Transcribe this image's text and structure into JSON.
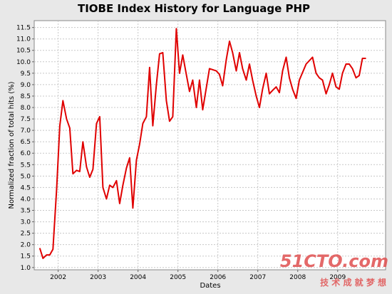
{
  "chart_data": {
    "type": "line",
    "title": "TIOBE Index History for Language PHP",
    "xlabel": "Dates",
    "ylabel": "Normalized fraction of total hits (%)",
    "xlim": [
      2001.4,
      2010.2
    ],
    "ylim": [
      0.9,
      11.8
    ],
    "x_ticks": [
      2002,
      2003,
      2004,
      2005,
      2006,
      2007,
      2008,
      2009
    ],
    "x_tick_labels": [
      "2002",
      "2003",
      "2004",
      "2005",
      "2006",
      "2007",
      "2008",
      "2009"
    ],
    "y_ticks": [
      1.0,
      1.5,
      2.0,
      2.5,
      3.0,
      3.5,
      4.0,
      4.5,
      5.0,
      5.5,
      6.0,
      6.5,
      7.0,
      7.5,
      8.0,
      8.5,
      9.0,
      9.5,
      10.0,
      10.5,
      11.0,
      11.5
    ],
    "y_tick_labels": [
      "1.0",
      "1.5",
      "2.0",
      "2.5",
      "3.0",
      "3.5",
      "4.0",
      "4.5",
      "5.0",
      "5.5",
      "6.0",
      "6.5",
      "7.0",
      "7.5",
      "8.0",
      "8.5",
      "9.0",
      "9.5",
      "10.0",
      "10.5",
      "11.0",
      "11.5"
    ],
    "grid": true,
    "series": [
      {
        "color": "#e00000",
        "x": [
          2001.54,
          2001.62,
          2001.71,
          2001.79,
          2001.87,
          2001.96,
          2002.04,
          2002.12,
          2002.21,
          2002.29,
          2002.37,
          2002.46,
          2002.54,
          2002.62,
          2002.71,
          2002.79,
          2002.87,
          2002.96,
          2003.04,
          2003.12,
          2003.21,
          2003.29,
          2003.37,
          2003.46,
          2003.54,
          2003.62,
          2003.71,
          2003.79,
          2003.87,
          2003.96,
          2004.04,
          2004.12,
          2004.21,
          2004.29,
          2004.37,
          2004.46,
          2004.54,
          2004.62,
          2004.71,
          2004.79,
          2004.87,
          2004.96,
          2005.04,
          2005.12,
          2005.21,
          2005.29,
          2005.37,
          2005.46,
          2005.54,
          2005.62,
          2005.79,
          2005.96,
          2006.04,
          2006.12,
          2006.21,
          2006.29,
          2006.37,
          2006.46,
          2006.54,
          2006.62,
          2006.71,
          2006.79,
          2006.87,
          2006.96,
          2007.04,
          2007.12,
          2007.21,
          2007.29,
          2007.37,
          2007.46,
          2007.54,
          2007.62,
          2007.71,
          2007.79,
          2007.87,
          2007.96,
          2008.04,
          2008.21,
          2008.37,
          2008.46,
          2008.54,
          2008.62,
          2008.71,
          2008.79,
          2008.87,
          2008.96,
          2009.04,
          2009.12,
          2009.21,
          2009.29,
          2009.37,
          2009.46,
          2009.54,
          2009.62,
          2009.71
        ],
        "y": [
          1.85,
          1.4,
          1.55,
          1.55,
          1.8,
          4.4,
          7.2,
          8.3,
          7.5,
          7.1,
          5.1,
          5.25,
          5.2,
          6.5,
          5.4,
          4.95,
          5.3,
          7.3,
          7.6,
          4.5,
          4.0,
          4.6,
          4.5,
          4.8,
          3.8,
          4.6,
          5.35,
          5.8,
          3.6,
          5.7,
          6.4,
          7.3,
          7.6,
          9.75,
          7.2,
          9.0,
          10.35,
          10.4,
          8.3,
          7.4,
          7.6,
          11.45,
          9.5,
          10.3,
          9.45,
          8.7,
          9.2,
          8.0,
          9.2,
          7.9,
          9.7,
          9.6,
          9.45,
          8.95,
          10.1,
          10.9,
          10.4,
          9.6,
          10.4,
          9.7,
          9.2,
          9.9,
          9.2,
          8.5,
          8.0,
          8.8,
          9.5,
          8.6,
          8.75,
          8.9,
          8.65,
          9.6,
          10.2,
          9.3,
          8.8,
          8.4,
          9.2,
          9.9,
          10.2,
          9.5,
          9.3,
          9.2,
          8.6,
          9.0,
          9.5,
          8.9,
          8.8,
          9.5,
          9.9,
          9.9,
          9.7,
          9.3,
          9.4,
          10.15,
          10.15
        ]
      }
    ]
  },
  "watermark": {
    "main": "51CTO.com",
    "sub": "技 术 成 就 梦 想",
    "color": "#e05050"
  }
}
